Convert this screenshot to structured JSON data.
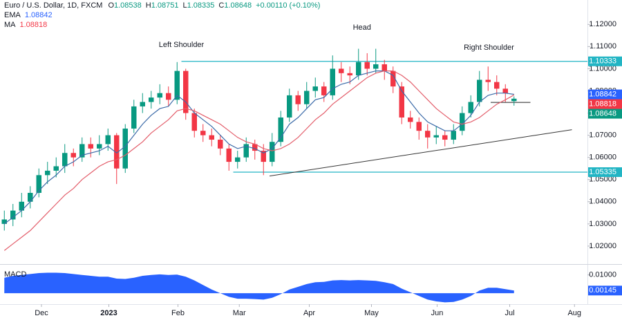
{
  "chart_data": {
    "type": "candlestick",
    "title": "Euro / U.S. Dollar, 1D, FXCM",
    "ohlc_prefixes": [
      "O",
      "H",
      "L",
      "C"
    ],
    "change_label": "+0.00110 (+0.10%)",
    "up_color": "#089981",
    "down_color": "#f23645",
    "grid": false,
    "xlim": [
      -0.5,
      67.5
    ],
    "xticks": [
      {
        "value": 4.3,
        "label": "Dec"
      },
      {
        "value": 12.1,
        "label": "2023"
      },
      {
        "value": 20.1,
        "label": "Feb"
      },
      {
        "value": 27.2,
        "label": "Mar"
      },
      {
        "value": 35.3,
        "label": "Apr"
      },
      {
        "value": 42.5,
        "label": "May"
      },
      {
        "value": 50.1,
        "label": "Jun"
      },
      {
        "value": 58.5,
        "label": "Jul"
      },
      {
        "value": 66.0,
        "label": "Aug"
      }
    ],
    "ylim": [
      1.0125,
      1.131
    ],
    "yticks": [
      {
        "value": 1.02,
        "label": "1.02000"
      },
      {
        "value": 1.03,
        "label": "1.03000"
      },
      {
        "value": 1.04,
        "label": "1.04000"
      },
      {
        "value": 1.05,
        "label": "1.05000"
      },
      {
        "value": 1.06,
        "label": "1.06000"
      },
      {
        "value": 1.07,
        "label": "1.07000"
      },
      {
        "value": 1.08,
        "label": "1.08000"
      },
      {
        "value": 1.09,
        "label": "1.09000"
      },
      {
        "value": 1.1,
        "label": "1.10000"
      },
      {
        "value": 1.11,
        "label": "1.11000"
      },
      {
        "value": 1.12,
        "label": "1.12000"
      }
    ],
    "candles": {
      "open": [
        1.03,
        1.032,
        1.036,
        1.04,
        1.044,
        1.052,
        1.054,
        1.056,
        1.062,
        1.06,
        1.066,
        1.064,
        1.066,
        1.07,
        1.055,
        1.073,
        1.083,
        1.085,
        1.087,
        1.089,
        1.086,
        1.099,
        1.08,
        1.072,
        1.07,
        1.068,
        1.064,
        1.058,
        1.06,
        1.066,
        1.063,
        1.058,
        1.067,
        1.078,
        1.088,
        1.084,
        1.09,
        1.092,
        1.088,
        1.1,
        1.098,
        1.097,
        1.103,
        1.1,
        1.102,
        1.099,
        1.092,
        1.078,
        1.076,
        1.072,
        1.069,
        1.07,
        1.068,
        1.072,
        1.08,
        1.085,
        1.095,
        1.094,
        1.091,
        1.08538
      ],
      "high": [
        1.036,
        1.039,
        1.044,
        1.047,
        1.055,
        1.058,
        1.06,
        1.066,
        1.064,
        1.069,
        1.069,
        1.07,
        1.073,
        1.071,
        1.075,
        1.086,
        1.089,
        1.09,
        1.093,
        1.092,
        1.103,
        1.1,
        1.082,
        1.075,
        1.073,
        1.07,
        1.066,
        1.063,
        1.069,
        1.068,
        1.066,
        1.071,
        1.081,
        1.091,
        1.09,
        1.094,
        1.096,
        1.094,
        1.106,
        1.103,
        1.101,
        1.109,
        1.107,
        1.109,
        1.104,
        1.101,
        1.094,
        1.081,
        1.078,
        1.075,
        1.074,
        1.072,
        1.075,
        1.083,
        1.088,
        1.099,
        1.101,
        1.097,
        1.093,
        1.08751
      ],
      "low": [
        1.027,
        1.029,
        1.033,
        1.037,
        1.042,
        1.048,
        1.051,
        1.053,
        1.056,
        1.058,
        1.06,
        1.061,
        1.063,
        1.048,
        1.053,
        1.071,
        1.08,
        1.082,
        1.084,
        1.083,
        1.084,
        1.077,
        1.069,
        1.067,
        1.065,
        1.061,
        1.054,
        1.055,
        1.058,
        1.059,
        1.052,
        1.056,
        1.065,
        1.076,
        1.081,
        1.082,
        1.087,
        1.085,
        1.086,
        1.094,
        1.093,
        1.095,
        1.097,
        1.098,
        1.095,
        1.089,
        1.075,
        1.073,
        1.068,
        1.064,
        1.066,
        1.065,
        1.066,
        1.07,
        1.078,
        1.083,
        1.09,
        1.088,
        1.085,
        1.08335
      ],
      "close": [
        1.032,
        1.036,
        1.04,
        1.044,
        1.052,
        1.054,
        1.056,
        1.062,
        1.06,
        1.066,
        1.064,
        1.066,
        1.07,
        1.055,
        1.073,
        1.083,
        1.085,
        1.087,
        1.089,
        1.086,
        1.099,
        1.08,
        1.072,
        1.07,
        1.068,
        1.064,
        1.058,
        1.06,
        1.066,
        1.063,
        1.058,
        1.067,
        1.078,
        1.088,
        1.084,
        1.09,
        1.092,
        1.088,
        1.1,
        1.098,
        1.097,
        1.103,
        1.1,
        1.102,
        1.099,
        1.092,
        1.078,
        1.076,
        1.072,
        1.069,
        1.07,
        1.068,
        1.072,
        1.08,
        1.085,
        1.095,
        1.094,
        1.091,
        1.089,
        1.08648
      ]
    },
    "series": [
      {
        "name": "EMA",
        "color": "#2962ff",
        "line_color": "#3b6aa8",
        "values": [
          1.03,
          1.033,
          1.036,
          1.04,
          1.045,
          1.049,
          1.052,
          1.056,
          1.058,
          1.061,
          1.062,
          1.063,
          1.065,
          1.062,
          1.065,
          1.07,
          1.075,
          1.079,
          1.082,
          1.083,
          1.088,
          1.085,
          1.08,
          1.077,
          1.074,
          1.07,
          1.066,
          1.064,
          1.065,
          1.064,
          1.062,
          1.064,
          1.069,
          1.075,
          1.078,
          1.082,
          1.086,
          1.087,
          1.091,
          1.093,
          1.094,
          1.097,
          1.098,
          1.099,
          1.099,
          1.097,
          1.09,
          1.085,
          1.08,
          1.076,
          1.074,
          1.072,
          1.072,
          1.075,
          1.079,
          1.085,
          1.088,
          1.089,
          1.089,
          1.08842
        ]
      },
      {
        "name": "MA",
        "color": "#f23645",
        "line_color": "#e35d6a",
        "values": [
          1.018,
          1.021,
          1.024,
          1.027,
          1.031,
          1.035,
          1.039,
          1.043,
          1.046,
          1.05,
          1.053,
          1.056,
          1.058,
          1.059,
          1.061,
          1.064,
          1.067,
          1.071,
          1.074,
          1.077,
          1.081,
          1.082,
          1.081,
          1.079,
          1.077,
          1.075,
          1.072,
          1.069,
          1.067,
          1.066,
          1.064,
          1.063,
          1.064,
          1.066,
          1.069,
          1.073,
          1.077,
          1.08,
          1.084,
          1.087,
          1.09,
          1.093,
          1.096,
          1.098,
          1.099,
          1.099,
          1.097,
          1.094,
          1.09,
          1.086,
          1.082,
          1.079,
          1.076,
          1.075,
          1.076,
          1.078,
          1.081,
          1.084,
          1.086,
          1.08818
        ]
      }
    ],
    "levels": [
      {
        "value": 1.10333,
        "from": 20.5,
        "color": "#22b5c4"
      },
      {
        "value": 1.05335,
        "from": 26.5,
        "color": "#22b5c4"
      }
    ],
    "trendline": {
      "x": [
        30.7,
        65.7
      ],
      "y": [
        1.0516,
        1.0725
      ],
      "color": "#333333"
    },
    "neckline": {
      "x": [
        56.3,
        60.9
      ],
      "y": [
        1.0848,
        1.0848
      ],
      "color": "#222222"
    },
    "pattern_labels": [
      {
        "text": "Left Shoulder",
        "x": 20.5,
        "y": 1.1107
      },
      {
        "text": "Head",
        "x": 41.4,
        "y": 1.1185
      },
      {
        "text": "Right Shoulder",
        "x": 56.1,
        "y": 1.1095
      }
    ],
    "macd": {
      "name": "MACD",
      "color": "#2962ff",
      "ylim": [
        -0.006,
        0.0148
      ],
      "yticks": [
        {
          "value": 0.01,
          "label": "0.01000"
        }
      ],
      "values": [
        0.0085,
        0.0095,
        0.01,
        0.0105,
        0.011,
        0.0112,
        0.0112,
        0.011,
        0.0105,
        0.01,
        0.0095,
        0.009,
        0.009,
        0.008,
        0.0078,
        0.0085,
        0.0095,
        0.01,
        0.0103,
        0.01,
        0.0102,
        0.009,
        0.007,
        0.0045,
        0.002,
        0,
        -0.002,
        -0.003,
        -0.003,
        -0.0032,
        -0.0035,
        -0.0025,
        -0.0005,
        0.002,
        0.0035,
        0.005,
        0.006,
        0.0062,
        0.007,
        0.0072,
        0.007,
        0.0072,
        0.007,
        0.0068,
        0.006,
        0.005,
        0.0025,
        0.0005,
        -0.0015,
        -0.0035,
        -0.0045,
        -0.005,
        -0.0048,
        -0.0035,
        -0.0015,
        0.0015,
        0.003,
        0.003,
        0.0022,
        0.00145
      ]
    }
  }
}
